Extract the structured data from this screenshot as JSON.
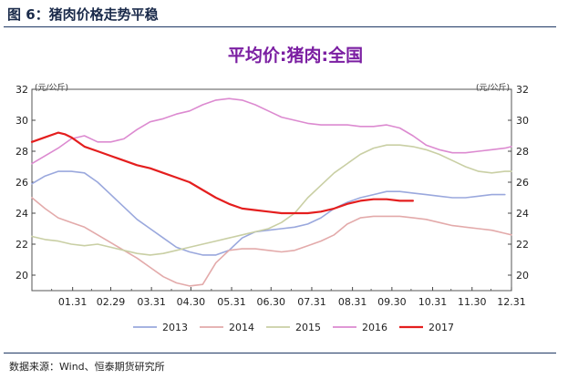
{
  "figure_label": "图 6：猪肉价格走势平稳",
  "source": "数据来源：Wind、恒泰期货研究所",
  "chart_data": {
    "type": "line",
    "title": "平均价:猪肉:全国",
    "unit_left": "(元/公斤)",
    "unit_right": "(元/公斤)",
    "xlim": [
      0,
      365
    ],
    "ylim": [
      19,
      32
    ],
    "yticks": [
      20,
      22,
      24,
      26,
      28,
      30,
      32
    ],
    "x_tick_labels": [
      "01.31",
      "02.29",
      "03.31",
      "04.30",
      "05.31",
      "06.30",
      "07.31",
      "08.31",
      "09.30",
      "10.31",
      "11.30",
      "12.31"
    ],
    "x_tick_days": [
      31,
      60,
      91,
      121,
      152,
      182,
      213,
      244,
      274,
      305,
      335,
      366
    ],
    "grid": false,
    "legend_position": "bottom",
    "series": [
      {
        "name": "2013",
        "color": "#9aa8dd",
        "x": [
          0,
          10,
          20,
          30,
          40,
          50,
          60,
          70,
          80,
          90,
          100,
          110,
          120,
          130,
          140,
          150,
          160,
          170,
          180,
          190,
          200,
          210,
          220,
          230,
          240,
          250,
          260,
          270,
          280,
          290,
          300,
          310,
          320,
          330,
          340,
          350,
          360
        ],
        "y": [
          25.9,
          26.4,
          26.7,
          26.7,
          26.6,
          26.0,
          25.2,
          24.4,
          23.6,
          23.0,
          22.4,
          21.8,
          21.5,
          21.3,
          21.3,
          21.6,
          22.4,
          22.8,
          22.9,
          23.0,
          23.1,
          23.3,
          23.7,
          24.3,
          24.7,
          25.0,
          25.2,
          25.4,
          25.4,
          25.3,
          25.2,
          25.1,
          25.0,
          25.0,
          25.1,
          25.2,
          25.2
        ]
      },
      {
        "name": "2014",
        "color": "#e3aaaa",
        "x": [
          0,
          10,
          20,
          30,
          40,
          50,
          60,
          70,
          80,
          90,
          100,
          110,
          120,
          130,
          140,
          150,
          160,
          170,
          180,
          190,
          200,
          210,
          220,
          230,
          240,
          250,
          260,
          270,
          280,
          290,
          300,
          310,
          320,
          330,
          340,
          350,
          360,
          365
        ],
        "y": [
          25.0,
          24.3,
          23.7,
          23.4,
          23.1,
          22.6,
          22.1,
          21.6,
          21.1,
          20.5,
          19.9,
          19.5,
          19.3,
          19.4,
          20.8,
          21.6,
          21.7,
          21.7,
          21.6,
          21.5,
          21.6,
          21.9,
          22.2,
          22.6,
          23.3,
          23.7,
          23.8,
          23.8,
          23.8,
          23.7,
          23.6,
          23.4,
          23.2,
          23.1,
          23.0,
          22.9,
          22.7,
          22.6
        ]
      },
      {
        "name": "2015",
        "color": "#c9cfa4",
        "x": [
          0,
          10,
          20,
          30,
          40,
          50,
          60,
          70,
          80,
          90,
          100,
          110,
          120,
          130,
          140,
          150,
          160,
          170,
          180,
          190,
          200,
          210,
          220,
          230,
          240,
          250,
          260,
          270,
          280,
          290,
          300,
          310,
          320,
          330,
          340,
          350,
          360,
          365
        ],
        "y": [
          22.5,
          22.3,
          22.2,
          22.0,
          21.9,
          22.0,
          21.8,
          21.6,
          21.4,
          21.3,
          21.4,
          21.6,
          21.8,
          22.0,
          22.2,
          22.4,
          22.6,
          22.8,
          23.0,
          23.4,
          24.0,
          25.0,
          25.8,
          26.6,
          27.2,
          27.8,
          28.2,
          28.4,
          28.4,
          28.3,
          28.1,
          27.8,
          27.4,
          27.0,
          26.7,
          26.6,
          26.7,
          26.7
        ]
      },
      {
        "name": "2016",
        "color": "#dc8ad0",
        "x": [
          0,
          10,
          20,
          30,
          40,
          50,
          60,
          70,
          80,
          90,
          100,
          110,
          120,
          130,
          140,
          150,
          160,
          170,
          180,
          190,
          200,
          210,
          220,
          230,
          240,
          250,
          260,
          270,
          280,
          290,
          300,
          310,
          320,
          330,
          340,
          350,
          360,
          365
        ],
        "y": [
          27.2,
          27.7,
          28.2,
          28.8,
          29.0,
          28.6,
          28.6,
          28.8,
          29.4,
          29.9,
          30.1,
          30.4,
          30.6,
          31.0,
          31.3,
          31.4,
          31.3,
          31.0,
          30.6,
          30.2,
          30.0,
          29.8,
          29.7,
          29.7,
          29.7,
          29.6,
          29.6,
          29.7,
          29.5,
          29.0,
          28.4,
          28.1,
          27.9,
          27.9,
          28.0,
          28.1,
          28.2,
          28.3
        ]
      },
      {
        "name": "2017",
        "color": "#e41e1e",
        "x": [
          0,
          10,
          20,
          25,
          30,
          40,
          50,
          60,
          70,
          80,
          90,
          100,
          110,
          120,
          130,
          140,
          150,
          160,
          170,
          180,
          190,
          200,
          210,
          220,
          230,
          240,
          250,
          260,
          270,
          280,
          290
        ],
        "y": [
          28.6,
          28.9,
          29.2,
          29.1,
          28.9,
          28.3,
          28.0,
          27.7,
          27.4,
          27.1,
          26.9,
          26.6,
          26.3,
          26.0,
          25.5,
          25.0,
          24.6,
          24.3,
          24.2,
          24.1,
          24.0,
          24.0,
          24.0,
          24.1,
          24.3,
          24.6,
          24.8,
          24.9,
          24.9,
          24.8,
          24.8
        ]
      }
    ]
  }
}
